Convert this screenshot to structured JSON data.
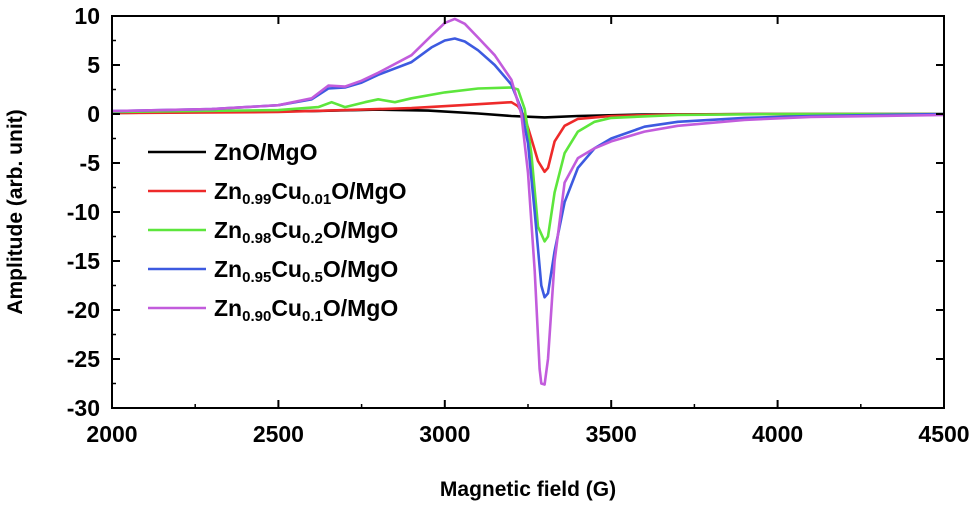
{
  "chart_data": {
    "type": "line",
    "xlabel": "Magnetic field (G)",
    "ylabel": "Amplitude (arb. unit)",
    "xlim": [
      2000,
      4500
    ],
    "ylim": [
      -30,
      10
    ],
    "xticks": [
      "2000",
      "2500",
      "3000",
      "3500",
      "4000",
      "4500"
    ],
    "yticks": [
      "10",
      "5",
      "0",
      "-5",
      "-10",
      "-15",
      "-20",
      "-25",
      "-30"
    ],
    "legend_position": "center-left",
    "series": [
      {
        "name": "ZnO/MgO",
        "legend_parts": [
          {
            "t": "ZnO/MgO",
            "sub": false
          }
        ],
        "color": "#000000",
        "points": [
          [
            2000,
            0.1
          ],
          [
            2300,
            0.2
          ],
          [
            2600,
            0.3
          ],
          [
            2800,
            0.45
          ],
          [
            2950,
            0.35
          ],
          [
            3100,
            0.05
          ],
          [
            3200,
            -0.2
          ],
          [
            3300,
            -0.35
          ],
          [
            3400,
            -0.2
          ],
          [
            3600,
            -0.05
          ],
          [
            4000,
            0.0
          ],
          [
            4500,
            0.0
          ]
        ]
      },
      {
        "name": "Zn0.99Cu0.01O/MgO",
        "legend_parts": [
          {
            "t": "Zn",
            "sub": false
          },
          {
            "t": "0.99",
            "sub": true
          },
          {
            "t": "Cu",
            "sub": false
          },
          {
            "t": "0.01",
            "sub": true
          },
          {
            "t": "O/MgO",
            "sub": false
          }
        ],
        "color": "#ee2a2a",
        "points": [
          [
            2000,
            0.1
          ],
          [
            2500,
            0.2
          ],
          [
            2700,
            0.4
          ],
          [
            2900,
            0.6
          ],
          [
            3050,
            0.9
          ],
          [
            3150,
            1.1
          ],
          [
            3200,
            1.2
          ],
          [
            3220,
            0.8
          ],
          [
            3240,
            -0.3
          ],
          [
            3260,
            -2.5
          ],
          [
            3280,
            -4.8
          ],
          [
            3300,
            -5.9
          ],
          [
            3310,
            -5.5
          ],
          [
            3330,
            -2.8
          ],
          [
            3360,
            -1.2
          ],
          [
            3400,
            -0.5
          ],
          [
            3500,
            -0.2
          ],
          [
            3700,
            -0.05
          ],
          [
            4000,
            0.0
          ],
          [
            4500,
            0.0
          ]
        ]
      },
      {
        "name": "Zn0.98Cu0.2O/MgO",
        "legend_parts": [
          {
            "t": "Zn",
            "sub": false
          },
          {
            "t": "0.98",
            "sub": true
          },
          {
            "t": "Cu",
            "sub": false
          },
          {
            "t": "0.2",
            "sub": true
          },
          {
            "t": "O/MgO",
            "sub": false
          }
        ],
        "color": "#5de63c",
        "points": [
          [
            2000,
            0.2
          ],
          [
            2500,
            0.4
          ],
          [
            2620,
            0.7
          ],
          [
            2660,
            1.2
          ],
          [
            2700,
            0.7
          ],
          [
            2760,
            1.2
          ],
          [
            2800,
            1.5
          ],
          [
            2850,
            1.2
          ],
          [
            2900,
            1.6
          ],
          [
            3000,
            2.2
          ],
          [
            3100,
            2.6
          ],
          [
            3200,
            2.7
          ],
          [
            3220,
            2.5
          ],
          [
            3240,
            0.5
          ],
          [
            3260,
            -4.0
          ],
          [
            3280,
            -11.5
          ],
          [
            3300,
            -13.0
          ],
          [
            3310,
            -12.5
          ],
          [
            3330,
            -8.0
          ],
          [
            3360,
            -4.0
          ],
          [
            3400,
            -1.8
          ],
          [
            3450,
            -0.8
          ],
          [
            3500,
            -0.4
          ],
          [
            3700,
            -0.1
          ],
          [
            4000,
            0.0
          ],
          [
            4500,
            0.0
          ]
        ]
      },
      {
        "name": "Zn0.95Cu0.5O/MgO",
        "legend_parts": [
          {
            "t": "Zn",
            "sub": false
          },
          {
            "t": "0.95",
            "sub": true
          },
          {
            "t": "Cu",
            "sub": false
          },
          {
            "t": "0.5",
            "sub": true
          },
          {
            "t": "O/MgO",
            "sub": false
          }
        ],
        "color": "#3d5ae0",
        "points": [
          [
            2000,
            0.3
          ],
          [
            2300,
            0.5
          ],
          [
            2500,
            0.9
          ],
          [
            2600,
            1.5
          ],
          [
            2650,
            2.6
          ],
          [
            2700,
            2.7
          ],
          [
            2750,
            3.2
          ],
          [
            2800,
            4.0
          ],
          [
            2900,
            5.3
          ],
          [
            2960,
            6.8
          ],
          [
            3000,
            7.5
          ],
          [
            3030,
            7.7
          ],
          [
            3060,
            7.4
          ],
          [
            3100,
            6.5
          ],
          [
            3150,
            5.0
          ],
          [
            3200,
            3.0
          ],
          [
            3230,
            0.5
          ],
          [
            3250,
            -3.0
          ],
          [
            3270,
            -10.0
          ],
          [
            3290,
            -17.5
          ],
          [
            3300,
            -18.7
          ],
          [
            3310,
            -18.3
          ],
          [
            3330,
            -14.0
          ],
          [
            3360,
            -9.0
          ],
          [
            3400,
            -5.5
          ],
          [
            3450,
            -3.5
          ],
          [
            3500,
            -2.5
          ],
          [
            3600,
            -1.3
          ],
          [
            3700,
            -0.8
          ],
          [
            3900,
            -0.4
          ],
          [
            4100,
            -0.2
          ],
          [
            4500,
            0.0
          ]
        ]
      },
      {
        "name": "Zn0.90Cu0.1O/MgO",
        "legend_parts": [
          {
            "t": "Zn",
            "sub": false
          },
          {
            "t": "0.90",
            "sub": true
          },
          {
            "t": "Cu",
            "sub": false
          },
          {
            "t": "0.1",
            "sub": true
          },
          {
            "t": "O/MgO",
            "sub": false
          }
        ],
        "color": "#c25cdc",
        "points": [
          [
            2000,
            0.3
          ],
          [
            2300,
            0.5
          ],
          [
            2500,
            0.9
          ],
          [
            2600,
            1.6
          ],
          [
            2650,
            2.9
          ],
          [
            2700,
            2.8
          ],
          [
            2750,
            3.4
          ],
          [
            2800,
            4.2
          ],
          [
            2900,
            6.0
          ],
          [
            2960,
            8.0
          ],
          [
            3000,
            9.3
          ],
          [
            3030,
            9.7
          ],
          [
            3060,
            9.2
          ],
          [
            3100,
            7.8
          ],
          [
            3150,
            6.0
          ],
          [
            3200,
            3.5
          ],
          [
            3230,
            0.0
          ],
          [
            3250,
            -6.0
          ],
          [
            3270,
            -16.0
          ],
          [
            3285,
            -26.0
          ],
          [
            3290,
            -27.5
          ],
          [
            3300,
            -27.6
          ],
          [
            3310,
            -25.0
          ],
          [
            3330,
            -15.0
          ],
          [
            3360,
            -7.0
          ],
          [
            3400,
            -4.5
          ],
          [
            3450,
            -3.5
          ],
          [
            3500,
            -2.8
          ],
          [
            3600,
            -1.8
          ],
          [
            3700,
            -1.2
          ],
          [
            3900,
            -0.6
          ],
          [
            4100,
            -0.3
          ],
          [
            4500,
            -0.1
          ]
        ]
      }
    ]
  }
}
